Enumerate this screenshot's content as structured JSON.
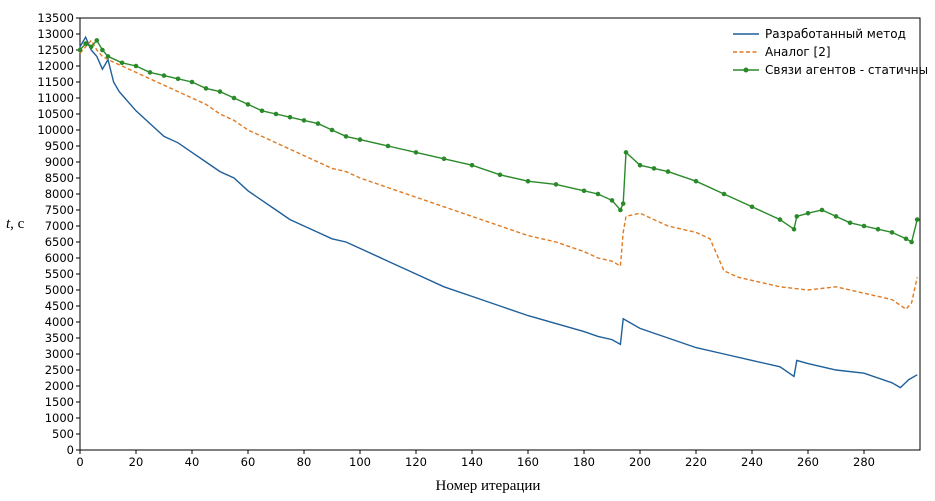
{
  "chart_data": {
    "type": "line",
    "xlabel": "Номер итерации",
    "ylabel_italic": "t",
    "ylabel_rest": ", с",
    "xlim": [
      0,
      300
    ],
    "ylim": [
      0,
      13500
    ],
    "xticks": [
      0,
      20,
      40,
      60,
      80,
      100,
      120,
      140,
      160,
      180,
      200,
      220,
      240,
      260,
      280
    ],
    "yticks": [
      0,
      500,
      1000,
      1500,
      2000,
      2500,
      3000,
      3500,
      4000,
      4500,
      5000,
      5500,
      6000,
      6500,
      7000,
      7500,
      8000,
      8500,
      9000,
      9500,
      10000,
      10500,
      11000,
      11500,
      12000,
      12500,
      13000,
      13500
    ],
    "grid": false,
    "legend_position": "top-right",
    "series": [
      {
        "name": "Разработанный метод",
        "color": "#1f5f9a",
        "style": "solid",
        "marker": "none",
        "x": [
          0,
          2,
          4,
          6,
          8,
          10,
          12,
          14,
          16,
          20,
          25,
          30,
          35,
          40,
          45,
          50,
          55,
          60,
          65,
          70,
          75,
          80,
          85,
          90,
          95,
          100,
          110,
          120,
          130,
          140,
          150,
          160,
          170,
          180,
          185,
          190,
          193,
          194,
          195,
          200,
          210,
          220,
          230,
          240,
          250,
          255,
          256,
          260,
          265,
          270,
          280,
          290,
          293,
          296,
          299
        ],
        "values": [
          12600,
          12900,
          12500,
          12300,
          11900,
          12200,
          11500,
          11200,
          11000,
          10600,
          10200,
          9800,
          9600,
          9300,
          9000,
          8700,
          8500,
          8100,
          7800,
          7500,
          7200,
          7000,
          6800,
          6600,
          6500,
          6300,
          5900,
          5500,
          5100,
          4800,
          4500,
          4200,
          3950,
          3700,
          3550,
          3450,
          3300,
          4100,
          4050,
          3800,
          3500,
          3200,
          3000,
          2800,
          2600,
          2300,
          2800,
          2700,
          2600,
          2500,
          2400,
          2100,
          1950,
          2200,
          2350
        ]
      },
      {
        "name": "Аналог [2]",
        "color": "#e07a22",
        "style": "dashed",
        "marker": "none",
        "x": [
          0,
          2,
          4,
          6,
          8,
          10,
          15,
          20,
          25,
          30,
          35,
          40,
          45,
          50,
          55,
          60,
          65,
          70,
          75,
          80,
          85,
          90,
          95,
          100,
          110,
          120,
          130,
          140,
          150,
          160,
          170,
          180,
          185,
          190,
          193,
          194,
          195,
          200,
          205,
          210,
          220,
          225,
          230,
          235,
          240,
          250,
          260,
          270,
          280,
          290,
          295,
          297,
          299
        ],
        "values": [
          12400,
          12600,
          12800,
          12500,
          12300,
          12200,
          12000,
          11800,
          11600,
          11400,
          11200,
          11000,
          10800,
          10500,
          10300,
          10000,
          9800,
          9600,
          9400,
          9200,
          9000,
          8800,
          8700,
          8500,
          8200,
          7900,
          7600,
          7300,
          7000,
          6700,
          6500,
          6200,
          6000,
          5900,
          5750,
          6800,
          7300,
          7400,
          7200,
          7000,
          6800,
          6600,
          5600,
          5400,
          5300,
          5100,
          5000,
          5100,
          4900,
          4700,
          4400,
          4600,
          5400
        ]
      },
      {
        "name": "Связи агентов - статичны",
        "color": "#2a8a2a",
        "style": "solid",
        "marker": "circle",
        "x": [
          0,
          2,
          4,
          6,
          8,
          10,
          15,
          20,
          25,
          30,
          35,
          40,
          45,
          50,
          55,
          60,
          65,
          70,
          75,
          80,
          85,
          90,
          95,
          100,
          110,
          120,
          130,
          140,
          150,
          160,
          170,
          180,
          185,
          190,
          193,
          194,
          195,
          200,
          205,
          210,
          220,
          230,
          240,
          250,
          255,
          256,
          260,
          265,
          270,
          275,
          280,
          285,
          290,
          295,
          297,
          299
        ],
        "values": [
          12500,
          12700,
          12600,
          12800,
          12500,
          12300,
          12100,
          12000,
          11800,
          11700,
          11600,
          11500,
          11300,
          11200,
          11000,
          10800,
          10600,
          10500,
          10400,
          10300,
          10200,
          10000,
          9800,
          9700,
          9500,
          9300,
          9100,
          8900,
          8600,
          8400,
          8300,
          8100,
          8000,
          7800,
          7500,
          7700,
          9300,
          8900,
          8800,
          8700,
          8400,
          8000,
          7600,
          7200,
          6900,
          7300,
          7400,
          7500,
          7300,
          7100,
          7000,
          6900,
          6800,
          6600,
          6500,
          7200
        ]
      }
    ]
  }
}
